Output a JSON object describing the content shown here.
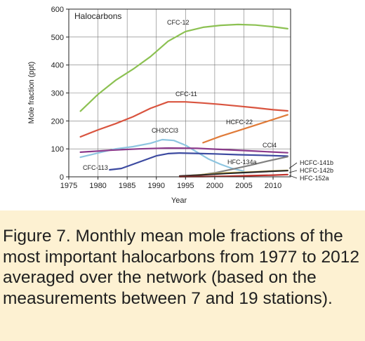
{
  "caption": "Figure 7. Monthly mean mole fractions of the most important halocarbons from 1977 to 2012 averaged over the network (based on the measurements between 7 and 19 stations).",
  "chart_data": {
    "type": "line",
    "title": "Halocarbons",
    "xlabel": "Year",
    "ylabel": "Mole fraction (ppt)",
    "xlim": [
      1975,
      2013
    ],
    "ylim": [
      0,
      600
    ],
    "xticks": [
      1975,
      1980,
      1985,
      1990,
      1995,
      2000,
      2005,
      2010
    ],
    "yticks": [
      0,
      100,
      200,
      300,
      400,
      500,
      600
    ],
    "grid": true,
    "series": [
      {
        "name": "CFC-12",
        "label": "CFC-12",
        "color": "#8cc152",
        "x": [
          1977,
          1980,
          1983,
          1986,
          1989,
          1992,
          1995,
          1998,
          2001,
          2004,
          2007,
          2010,
          2012.5
        ],
        "y": [
          235,
          295,
          345,
          385,
          430,
          485,
          520,
          535,
          542,
          545,
          543,
          537,
          530
        ]
      },
      {
        "name": "CFC-11",
        "label": "CFC-11",
        "color": "#d9543f",
        "x": [
          1977,
          1980,
          1983,
          1986,
          1989,
          1992,
          1995,
          1998,
          2001,
          2004,
          2007,
          2010,
          2012.5
        ],
        "y": [
          143,
          168,
          190,
          215,
          245,
          268,
          268,
          264,
          259,
          253,
          247,
          240,
          236
        ]
      },
      {
        "name": "HCFC-22",
        "label": "HCFC-22",
        "color": "#e07b39",
        "x": [
          1998,
          2001,
          2004,
          2007,
          2010,
          2012.5
        ],
        "y": [
          122,
          145,
          165,
          185,
          205,
          222
        ]
      },
      {
        "name": "CH3CCl3",
        "label": "CH3CCl3",
        "color": "#8ec5e0",
        "x": [
          1977,
          1980,
          1983,
          1986,
          1989,
          1991,
          1993,
          1995,
          1997,
          1999,
          2001,
          2003,
          2005
        ],
        "y": [
          70,
          85,
          100,
          108,
          120,
          133,
          130,
          113,
          88,
          63,
          45,
          30,
          20
        ]
      },
      {
        "name": "CCl4",
        "label": "CCl4",
        "color": "#8b3a8b",
        "x": [
          1977,
          1982,
          1987,
          1992,
          1997,
          2002,
          2007,
          2012.5
        ],
        "y": [
          88,
          95,
          100,
          103,
          102,
          97,
          92,
          86
        ]
      },
      {
        "name": "CFC-113",
        "label": "CFC-113",
        "color": "#3c4aa0",
        "x": [
          1982,
          1984,
          1986,
          1988,
          1990,
          1992,
          1994,
          1996,
          2000,
          2004,
          2008,
          2012.5
        ],
        "y": [
          25,
          30,
          45,
          60,
          75,
          83,
          85,
          84,
          82,
          79,
          77,
          74
        ]
      },
      {
        "name": "HFC-134a",
        "label": "HFC-134a",
        "color": "#808080",
        "x": [
          1994,
          1997,
          2000,
          2003,
          2006,
          2009,
          2012.5
        ],
        "y": [
          1,
          5,
          14,
          27,
          41,
          56,
          72
        ]
      },
      {
        "name": "HCFC-141b",
        "label": "HCFC-141b",
        "color": "#e9cc55",
        "x": [
          1994,
          1998,
          2002,
          2006,
          2010,
          2012.5
        ],
        "y": [
          2,
          8,
          14,
          17,
          21,
          23
        ]
      },
      {
        "name": "HCFC-142b",
        "label": "HCFC-142b",
        "color": "#2a2a2a",
        "x": [
          1994,
          1998,
          2002,
          2006,
          2010,
          2012.5
        ],
        "y": [
          3,
          7,
          12,
          16,
          20,
          22
        ]
      },
      {
        "name": "HFC-152a",
        "label": "HFC-152a",
        "color": "#c0302a",
        "x": [
          1994,
          1998,
          2002,
          2006,
          2010,
          2012.5
        ],
        "y": [
          0.5,
          1,
          2,
          4,
          6,
          8
        ]
      }
    ]
  }
}
